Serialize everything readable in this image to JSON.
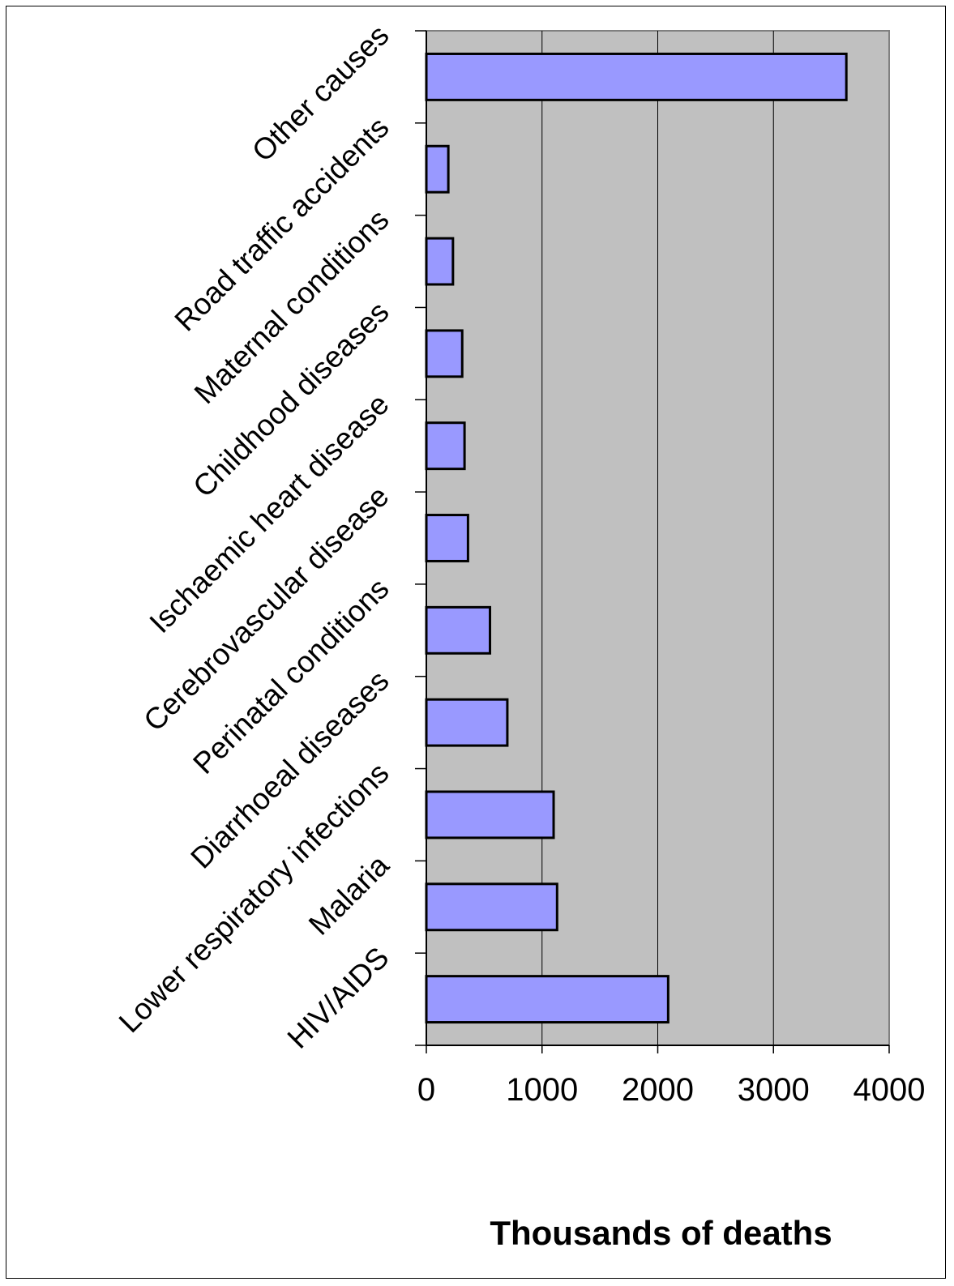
{
  "chart_data": {
    "type": "bar",
    "orientation": "horizontal",
    "categories": [
      "HIV/AIDS",
      "Malaria",
      "Lower respiratory infections",
      "Diarrhoeal diseases",
      "Perinatal conditions",
      "Cerebrovascular disease",
      "Ischaemic heart disease",
      "Childhood diseases",
      "Maternal conditions",
      "Road traffic accidents",
      "Other causes"
    ],
    "values": [
      2090,
      1130,
      1100,
      700,
      550,
      360,
      330,
      310,
      230,
      190,
      3630
    ],
    "xlabel": "Thousands of deaths",
    "ylabel": "",
    "xlim": [
      0,
      4000
    ],
    "xticks": [
      "0",
      "1000",
      "2000",
      "3000",
      "4000"
    ],
    "grid": "vertical",
    "legend": "none",
    "colors": {
      "bar_fill": "#9999ff",
      "bar_stroke": "#000000",
      "plot_background": "#c0c0c0",
      "gridline": "#000000",
      "plot_border": "#808080"
    }
  }
}
